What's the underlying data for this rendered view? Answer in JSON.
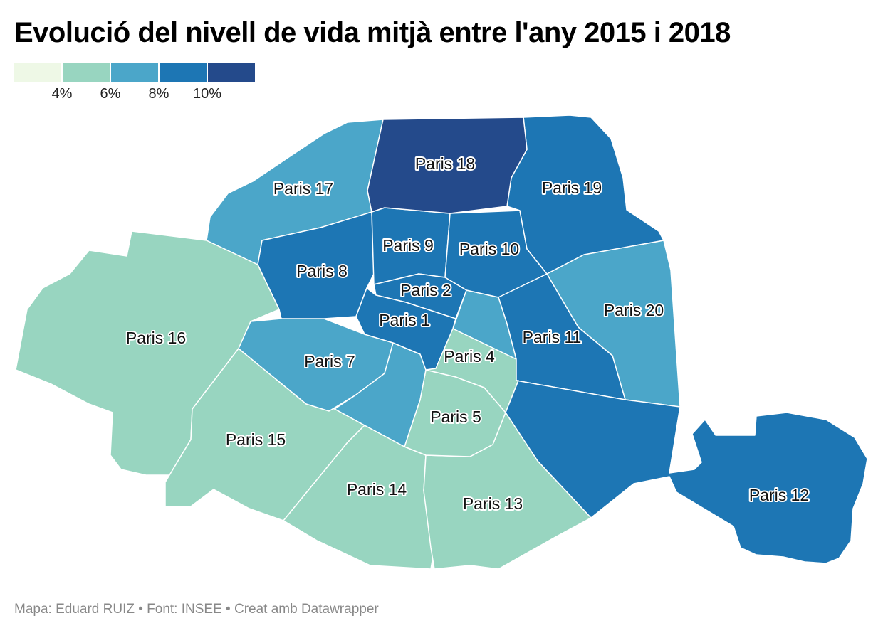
{
  "title": "Evolució del nivell de vida mitjà entre l'any 2015 i 2018",
  "legend": {
    "colors": [
      "#eef8e6",
      "#98d5c0",
      "#4ba6c9",
      "#1d76b4",
      "#244a8b"
    ],
    "ticks": [
      "4%",
      "6%",
      "8%",
      "10%"
    ]
  },
  "footer": "Mapa: Eduard RUIZ • Font: INSEE • Creat amb Datawrapper",
  "districts": [
    {
      "id": "p16",
      "label": "Paris 16",
      "color": "#98d5c0"
    },
    {
      "id": "p15",
      "label": "Paris 15",
      "color": "#98d5c0"
    },
    {
      "id": "p14",
      "label": "Paris 14",
      "color": "#98d5c0"
    },
    {
      "id": "p13",
      "label": "Paris 13",
      "color": "#98d5c0"
    },
    {
      "id": "p5",
      "label": "Paris 5",
      "color": "#98d5c0"
    },
    {
      "id": "p4",
      "label": "Paris 4",
      "color": "#98d5c0"
    },
    {
      "id": "p17",
      "label": "Paris 17",
      "color": "#4ba6c9"
    },
    {
      "id": "p7",
      "label": "Paris 7",
      "color": "#4ba6c9"
    },
    {
      "id": "p6",
      "label": "",
      "color": "#4ba6c9"
    },
    {
      "id": "p20",
      "label": "Paris 20",
      "color": "#4ba6c9"
    },
    {
      "id": "p3",
      "label": "",
      "color": "#4ba6c9"
    },
    {
      "id": "p8",
      "label": "Paris 8",
      "color": "#1d76b4"
    },
    {
      "id": "p9",
      "label": "Paris 9",
      "color": "#1d76b4"
    },
    {
      "id": "p10",
      "label": "Paris 10",
      "color": "#1d76b4"
    },
    {
      "id": "p2",
      "label": "Paris 2",
      "color": "#1d76b4"
    },
    {
      "id": "p1",
      "label": "Paris 1",
      "color": "#1d76b4"
    },
    {
      "id": "p11",
      "label": "Paris 11",
      "color": "#1d76b4"
    },
    {
      "id": "p19",
      "label": "Paris 19",
      "color": "#1d76b4"
    },
    {
      "id": "p12",
      "label": "Paris 12",
      "color": "#1d76b4"
    },
    {
      "id": "p18",
      "label": "Paris 18",
      "color": "#244a8b"
    }
  ]
}
